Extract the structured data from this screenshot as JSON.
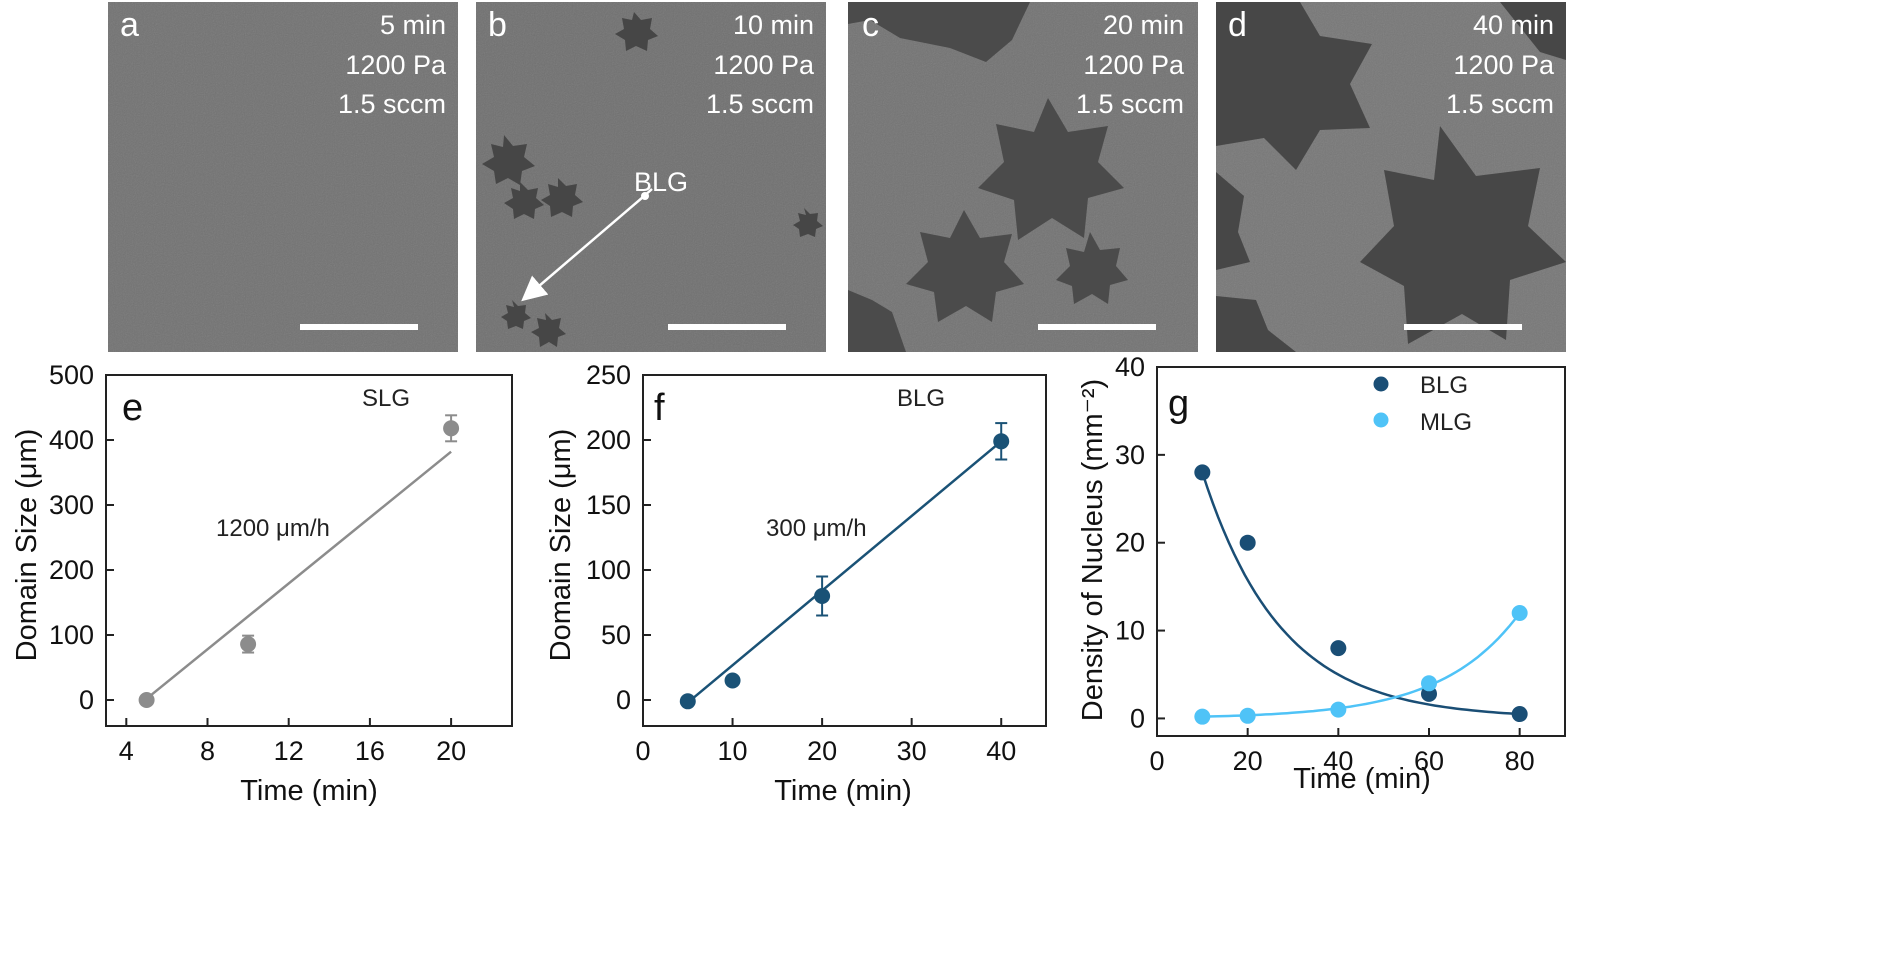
{
  "sem_panels": [
    {
      "letter": "a",
      "time": "5 min",
      "pressure": "1200 Pa",
      "flow": "1.5 sccm"
    },
    {
      "letter": "b",
      "time": "10 min",
      "pressure": "1200 Pa",
      "flow": "1.5 sccm",
      "annotation": "BLG"
    },
    {
      "letter": "c",
      "time": "20 min",
      "pressure": "1200 Pa",
      "flow": "1.5 sccm"
    },
    {
      "letter": "d",
      "time": "40 min",
      "pressure": "1200 Pa",
      "flow": "1.5 sccm"
    }
  ],
  "chart_data": [
    {
      "panel": "e",
      "type": "scatter",
      "label": "SLG",
      "rate_label": "1200 μm/h",
      "xlabel": "Time (min)",
      "ylabel": "Domain Size (μm)",
      "xlim": [
        3,
        23
      ],
      "ylim": [
        -40,
        500
      ],
      "xticks": [
        4,
        8,
        12,
        16,
        20
      ],
      "yticks": [
        0,
        100,
        200,
        300,
        400,
        500
      ],
      "color": "#8c8c8c",
      "points": [
        {
          "x": 5,
          "y": 0,
          "err": 4
        },
        {
          "x": 10,
          "y": 86,
          "err": 13
        },
        {
          "x": 20,
          "y": 418,
          "err": 20
        }
      ],
      "fit": [
        [
          5,
          2
        ],
        [
          20,
          382
        ]
      ]
    },
    {
      "panel": "f",
      "type": "scatter",
      "label": "BLG",
      "rate_label": "300 μm/h",
      "xlabel": "Time (min)",
      "ylabel": "Domain Size (μm)",
      "xlim": [
        0,
        45
      ],
      "ylim": [
        -20,
        250
      ],
      "xticks": [
        0,
        10,
        20,
        30,
        40
      ],
      "yticks": [
        0,
        50,
        100,
        150,
        200,
        250
      ],
      "color": "#1a5276",
      "points": [
        {
          "x": 5,
          "y": -1,
          "err": 2
        },
        {
          "x": 10,
          "y": 15,
          "err": 3
        },
        {
          "x": 20,
          "y": 80,
          "err": 15
        },
        {
          "x": 40,
          "y": 199,
          "err": 14
        }
      ],
      "fit": [
        [
          5,
          -2
        ],
        [
          40,
          199
        ]
      ]
    },
    {
      "panel": "g",
      "type": "scatter",
      "xlabel": "Time (min)",
      "ylabel": "Density of Nucleus (mm⁻²)",
      "xlim": [
        0,
        90
      ],
      "ylim": [
        -2,
        40
      ],
      "xticks": [
        0,
        20,
        40,
        60,
        80
      ],
      "yticks": [
        0,
        10,
        20,
        30,
        40
      ],
      "legend": "top-right",
      "series": [
        {
          "name": "BLG",
          "color": "#1a4e75",
          "x": [
            10,
            20,
            40,
            60,
            80
          ],
          "y": [
            28,
            20,
            8,
            2.8,
            0.5
          ]
        },
        {
          "name": "MLG",
          "color": "#4fc3f7",
          "x": [
            10,
            20,
            40,
            60,
            80
          ],
          "y": [
            0.2,
            0.3,
            1.0,
            4.0,
            12.0
          ]
        }
      ]
    }
  ],
  "colors": {
    "sem_background": "#6f6f6f",
    "domain": "#4a4a4a",
    "text_on_image": "#ffffff",
    "axis": "#222222"
  }
}
